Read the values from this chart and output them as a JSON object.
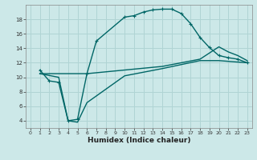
{
  "xlabel": "Humidex (Indice chaleur)",
  "bg_color": "#cce8e8",
  "grid_color": "#b0d4d4",
  "line_color": "#006666",
  "xlim": [
    -0.5,
    23.5
  ],
  "ylim": [
    3.0,
    20.0
  ],
  "xticks": [
    0,
    1,
    2,
    3,
    4,
    5,
    6,
    7,
    8,
    9,
    10,
    11,
    12,
    13,
    14,
    15,
    16,
    17,
    18,
    19,
    20,
    21,
    22,
    23
  ],
  "yticks": [
    4,
    6,
    8,
    10,
    12,
    14,
    16,
    18
  ],
  "line1_x": [
    1,
    2,
    3,
    4,
    5,
    6,
    7,
    10,
    11,
    12,
    13,
    14,
    15,
    16,
    17,
    18,
    19,
    20,
    21,
    22,
    23
  ],
  "line1_y": [
    11,
    9.5,
    9.3,
    4.0,
    4.2,
    10.5,
    15.0,
    18.3,
    18.5,
    19.0,
    19.3,
    19.4,
    19.4,
    18.8,
    17.4,
    15.5,
    14.1,
    13.0,
    12.7,
    12.5,
    12.0
  ],
  "line2_x": [
    1,
    6,
    14,
    18,
    20,
    21,
    22,
    23
  ],
  "line2_y": [
    10.5,
    10.5,
    11.5,
    12.5,
    14.2,
    13.5,
    13.0,
    12.3
  ],
  "line3_x": [
    1,
    3,
    4,
    5,
    6,
    10,
    14,
    18,
    20,
    21,
    22,
    23
  ],
  "line3_y": [
    10.5,
    10.0,
    4.0,
    3.8,
    6.5,
    10.2,
    11.2,
    12.3,
    12.3,
    12.2,
    12.1,
    12.0
  ],
  "xlabel_fontsize": 6.5,
  "tick_fontsize": 5.0,
  "lw": 1.0,
  "ms": 3.0
}
